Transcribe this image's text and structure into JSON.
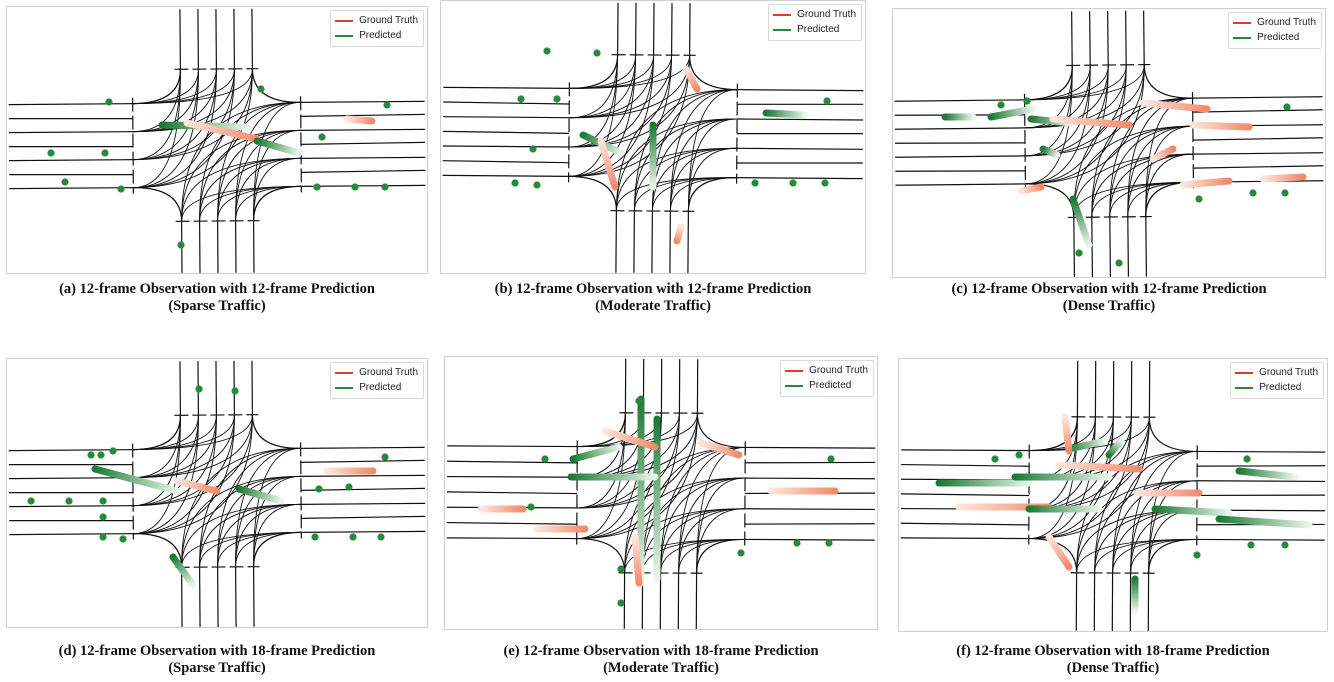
{
  "legend": {
    "ground_truth": "Ground Truth",
    "predicted": "Predicted",
    "ground_truth_color": "#e8382a",
    "predicted_color": "#238b3a"
  },
  "panels": [
    {
      "id": "a",
      "caption_line1": "(a) 12-frame Observation with 12-frame Prediction",
      "caption_line2": "(Sparse Traffic)",
      "traffic": "sparse"
    },
    {
      "id": "b",
      "caption_line1": "(b) 12-frame Observation with 12-frame Prediction",
      "caption_line2": "(Moderate Traffic)",
      "traffic": "moderate"
    },
    {
      "id": "c",
      "caption_line1": "(c) 12-frame Observation with 12-frame Prediction",
      "caption_line2": "(Dense Traffic)",
      "traffic": "dense"
    },
    {
      "id": "d",
      "caption_line1": "(d) 12-frame Observation with 18-frame Prediction",
      "caption_line2": "(Sparse Traffic)",
      "traffic": "sparse"
    },
    {
      "id": "e",
      "caption_line1": "(e) 12-frame Observation with 18-frame Prediction",
      "caption_line2": "(Moderate Traffic)",
      "traffic": "moderate"
    },
    {
      "id": "f",
      "caption_line1": "(f) 12-frame Observation with 18-frame Prediction",
      "caption_line2": "(Dense Traffic)",
      "traffic": "dense"
    }
  ]
}
